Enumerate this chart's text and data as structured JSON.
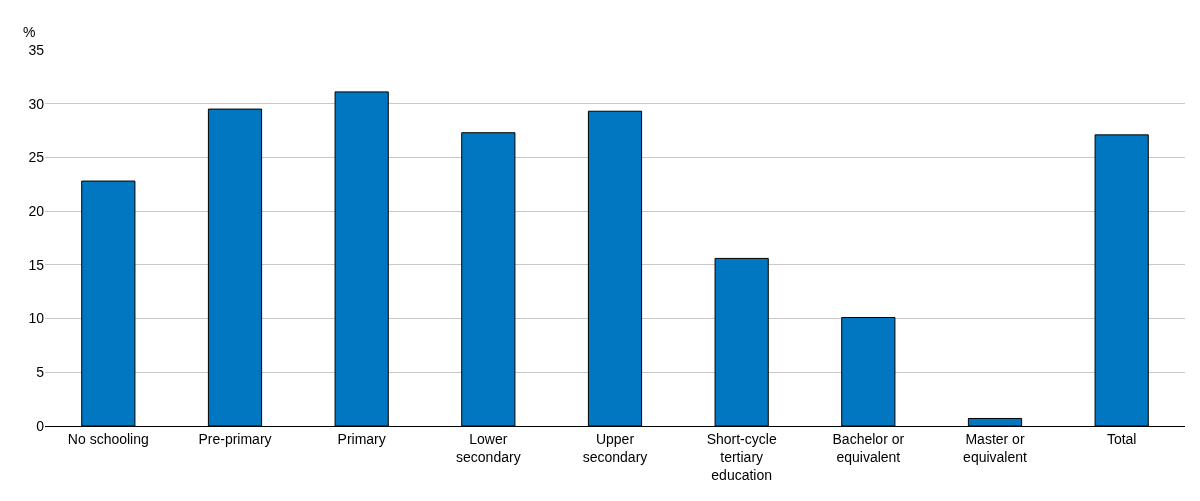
{
  "chart_data": {
    "type": "bar",
    "ylabel": "%",
    "categories": [
      "No schooling",
      "Pre-primary",
      "Primary",
      "Lower secondary",
      "Upper secondary",
      "Short-cycle tertiary education",
      "Bachelor or equivalent",
      "Master or equivalent",
      "Total"
    ],
    "values": [
      22.8,
      29.5,
      31.1,
      27.3,
      29.3,
      15.6,
      10.1,
      0.7,
      27.1
    ],
    "color": "#0077c0",
    "ylim": [
      0,
      35
    ],
    "yticks": [
      0,
      5,
      10,
      15,
      20,
      25,
      30,
      35
    ],
    "grid": "y"
  }
}
